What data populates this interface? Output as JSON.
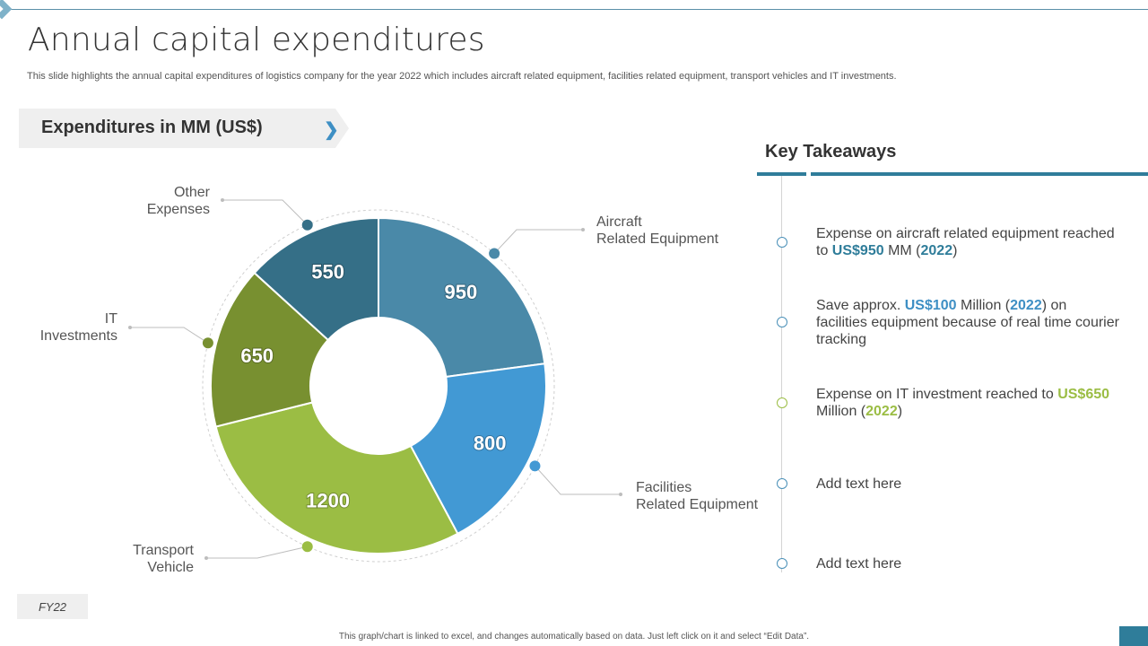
{
  "title": "Annual capital expenditures",
  "subtitle": "This slide highlights the annual capital expenditures of logistics company for the year 2022 which includes aircraft related equipment, facilities related equipment, transport vehicles and IT investments.",
  "expenditures_banner": "Expenditures in MM (US$)",
  "chart_data": {
    "type": "pie",
    "variant": "donut",
    "title": "",
    "unit": "MM (US$)",
    "categories": [
      "Aircraft Related Equipment",
      "Facilities Related Equipment",
      "Transport Vehicle",
      "IT Investments",
      "Other Expenses"
    ],
    "values": [
      950,
      800,
      1200,
      650,
      550
    ],
    "colors": [
      "#4a89a8",
      "#4299d4",
      "#9bbd44",
      "#789030",
      "#356f87"
    ],
    "data_labels": [
      "950",
      "800",
      "1200",
      "650",
      "550"
    ],
    "start": "top, clockwise",
    "callouts": [
      {
        "category_index": 0,
        "line1": "Aircraft",
        "line2": "Related Equipment"
      },
      {
        "category_index": 1,
        "line1": "Facilities",
        "line2": "Related Equipment"
      },
      {
        "category_index": 2,
        "line1": "Transport",
        "line2": "Vehicle"
      },
      {
        "category_index": 3,
        "line1": "IT",
        "line2": "Investments"
      },
      {
        "category_index": 4,
        "line1": "Other",
        "line2": "Expenses"
      }
    ]
  },
  "fy_label": "FY22",
  "key_takeaways": {
    "title": "Key Takeaways",
    "items": [
      {
        "color": "blue",
        "parts": [
          {
            "t": "Expense on aircraft related equipment reached to "
          },
          {
            "t": "US$950",
            "cls": "hl-dark"
          },
          {
            "t": " MM ("
          },
          {
            "t": "2022",
            "cls": "hl-dark"
          },
          {
            "t": ")"
          }
        ]
      },
      {
        "color": "blue",
        "parts": [
          {
            "t": "Save approx. "
          },
          {
            "t": "US$100",
            "cls": "hl-blue"
          },
          {
            "t": " Million ("
          },
          {
            "t": "2022",
            "cls": "hl-blue"
          },
          {
            "t": ") on facilities equipment because of real time courier tracking"
          }
        ]
      },
      {
        "color": "green",
        "parts": [
          {
            "t": "Expense on IT investment reached to "
          },
          {
            "t": "US$650",
            "cls": "hl-green"
          },
          {
            "t": " Million ("
          },
          {
            "t": "2022",
            "cls": "hl-green"
          },
          {
            "t": ")"
          }
        ]
      },
      {
        "color": "blue",
        "parts": [
          {
            "t": "Add text here"
          }
        ]
      },
      {
        "color": "blue",
        "parts": [
          {
            "t": "Add text here"
          }
        ]
      }
    ]
  },
  "footnote": "This graph/chart is linked to excel, and changes automatically based on data. Just left click on it and select “Edit Data”."
}
